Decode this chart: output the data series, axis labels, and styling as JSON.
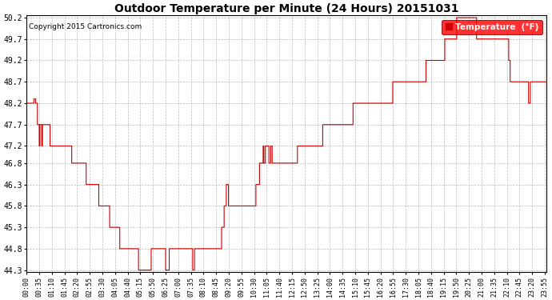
{
  "title": "Outdoor Temperature per Minute (24 Hours) 20151031",
  "copyright_text": "Copyright 2015 Cartronics.com",
  "legend_label": "Temperature  (°F)",
  "line_color": "#cc0000",
  "background_color": "#ffffff",
  "plot_bg_color": "#ffffff",
  "grid_color": "#aaaaaa",
  "ylim": [
    44.3,
    50.2
  ],
  "yticks": [
    44.3,
    44.8,
    45.3,
    45.8,
    46.3,
    46.8,
    47.2,
    47.7,
    48.2,
    48.7,
    49.2,
    49.7,
    50.2
  ],
  "xtick_labels": [
    "00:00",
    "00:35",
    "01:10",
    "01:45",
    "02:20",
    "02:55",
    "03:30",
    "04:05",
    "04:40",
    "05:15",
    "05:50",
    "06:25",
    "07:00",
    "07:35",
    "08:10",
    "08:45",
    "09:20",
    "09:55",
    "10:30",
    "11:05",
    "11:40",
    "12:15",
    "12:50",
    "13:25",
    "14:00",
    "14:35",
    "15:10",
    "15:45",
    "16:20",
    "16:55",
    "17:30",
    "18:05",
    "18:40",
    "19:15",
    "19:50",
    "20:25",
    "21:00",
    "21:35",
    "22:10",
    "22:45",
    "23:20",
    "23:55"
  ],
  "temp_segments": [
    {
      "from_min": 0,
      "to_min": 20,
      "val": 48.2
    },
    {
      "from_min": 20,
      "to_min": 25,
      "val": 48.3
    },
    {
      "from_min": 25,
      "to_min": 30,
      "val": 48.2
    },
    {
      "from_min": 30,
      "to_min": 35,
      "val": 47.7
    },
    {
      "from_min": 35,
      "to_min": 37,
      "val": 47.2
    },
    {
      "from_min": 37,
      "to_min": 42,
      "val": 47.7
    },
    {
      "from_min": 42,
      "to_min": 44,
      "val": 47.2
    },
    {
      "from_min": 44,
      "to_min": 46,
      "val": 47.7
    },
    {
      "from_min": 46,
      "to_min": 65,
      "val": 47.7
    },
    {
      "from_min": 65,
      "to_min": 125,
      "val": 47.2
    },
    {
      "from_min": 125,
      "to_min": 165,
      "val": 46.8
    },
    {
      "from_min": 165,
      "to_min": 200,
      "val": 46.3
    },
    {
      "from_min": 200,
      "to_min": 230,
      "val": 45.8
    },
    {
      "from_min": 230,
      "to_min": 258,
      "val": 45.3
    },
    {
      "from_min": 258,
      "to_min": 310,
      "val": 44.8
    },
    {
      "from_min": 310,
      "to_min": 345,
      "val": 44.3
    },
    {
      "from_min": 345,
      "to_min": 385,
      "val": 44.8
    },
    {
      "from_min": 385,
      "to_min": 395,
      "val": 44.3
    },
    {
      "from_min": 395,
      "to_min": 401,
      "val": 44.8
    },
    {
      "from_min": 401,
      "to_min": 460,
      "val": 44.8
    },
    {
      "from_min": 460,
      "to_min": 465,
      "val": 44.3
    },
    {
      "from_min": 465,
      "to_min": 540,
      "val": 44.8
    },
    {
      "from_min": 540,
      "to_min": 547,
      "val": 45.3
    },
    {
      "from_min": 547,
      "to_min": 553,
      "val": 45.8
    },
    {
      "from_min": 553,
      "to_min": 559,
      "val": 46.3
    },
    {
      "from_min": 559,
      "to_min": 571,
      "val": 45.8
    },
    {
      "from_min": 571,
      "to_min": 635,
      "val": 45.8
    },
    {
      "from_min": 635,
      "to_min": 645,
      "val": 46.3
    },
    {
      "from_min": 645,
      "to_min": 655,
      "val": 46.8
    },
    {
      "from_min": 655,
      "to_min": 657,
      "val": 47.2
    },
    {
      "from_min": 657,
      "to_min": 661,
      "val": 46.8
    },
    {
      "from_min": 661,
      "to_min": 666,
      "val": 47.2
    },
    {
      "from_min": 666,
      "to_min": 671,
      "val": 47.2
    },
    {
      "from_min": 671,
      "to_min": 676,
      "val": 46.8
    },
    {
      "from_min": 676,
      "to_min": 680,
      "val": 47.2
    },
    {
      "from_min": 680,
      "to_min": 685,
      "val": 46.8
    },
    {
      "from_min": 685,
      "to_min": 750,
      "val": 46.8
    },
    {
      "from_min": 750,
      "to_min": 820,
      "val": 47.2
    },
    {
      "from_min": 820,
      "to_min": 904,
      "val": 47.7
    },
    {
      "from_min": 904,
      "to_min": 1014,
      "val": 48.2
    },
    {
      "from_min": 1014,
      "to_min": 1106,
      "val": 48.7
    },
    {
      "from_min": 1106,
      "to_min": 1158,
      "val": 49.2
    },
    {
      "from_min": 1158,
      "to_min": 1191,
      "val": 49.7
    },
    {
      "from_min": 1191,
      "to_min": 1246,
      "val": 50.2
    },
    {
      "from_min": 1246,
      "to_min": 1250,
      "val": 49.7
    },
    {
      "from_min": 1250,
      "to_min": 1335,
      "val": 49.7
    },
    {
      "from_min": 1335,
      "to_min": 1339,
      "val": 49.2
    },
    {
      "from_min": 1339,
      "to_min": 1343,
      "val": 48.7
    },
    {
      "from_min": 1343,
      "to_min": 1390,
      "val": 48.7
    },
    {
      "from_min": 1390,
      "to_min": 1395,
      "val": 48.2
    },
    {
      "from_min": 1395,
      "to_min": 1400,
      "val": 48.7
    },
    {
      "from_min": 1400,
      "to_min": 1440,
      "val": 48.7
    }
  ]
}
